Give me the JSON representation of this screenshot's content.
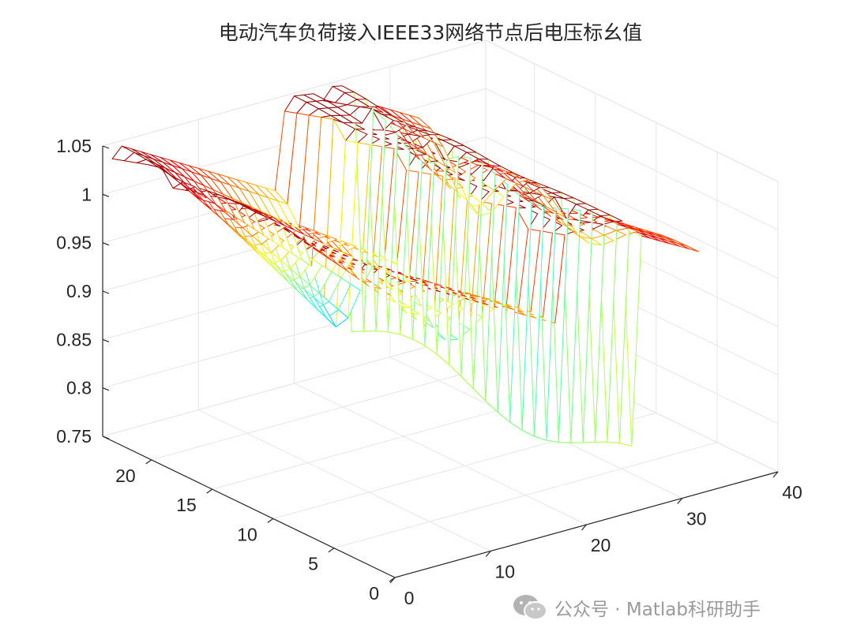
{
  "chart_data": {
    "type": "mesh",
    "title": "电动汽车负荷接入IEEE33网络节点后电压标幺值",
    "x_axis": {
      "range": [
        0,
        40
      ],
      "ticks": [
        0,
        10,
        20,
        30,
        40
      ]
    },
    "y_axis": {
      "range": [
        0,
        24
      ],
      "ticks": [
        0,
        5,
        10,
        15,
        20
      ]
    },
    "z_axis": {
      "range": [
        0.75,
        1.05
      ],
      "ticks": [
        0.75,
        0.8,
        0.85,
        0.9,
        0.95,
        1,
        1.05
      ]
    },
    "colormap": "jet",
    "grid": true,
    "nodes": 33,
    "hours": 24,
    "voltage_min": 0.76,
    "voltage_max": 1.05
  },
  "watermark": {
    "text": "公众号 · Matlab科研助手",
    "icon": "wechat-icon"
  }
}
